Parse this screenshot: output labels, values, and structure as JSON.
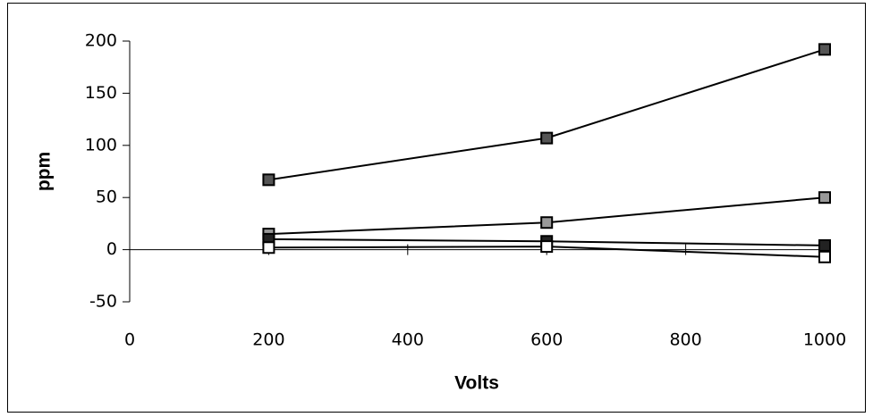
{
  "chart_data": {
    "type": "line",
    "xlabel": "Volts",
    "ylabel": "ppm",
    "x": [
      200,
      600,
      1000
    ],
    "series": [
      {
        "color": "#555555",
        "values": [
          67,
          107,
          192
        ]
      },
      {
        "color": "#999999",
        "values": [
          15,
          26,
          50
        ]
      },
      {
        "color": "#222222",
        "values": [
          10,
          8,
          4
        ]
      },
      {
        "color": "#ffffff",
        "values": [
          2,
          3,
          -7
        ]
      }
    ],
    "xlim": [
      0,
      1000
    ],
    "xticks": [
      0,
      200,
      400,
      600,
      800,
      1000
    ],
    "ylim": [
      -50,
      200
    ],
    "yticks": [
      -50,
      0,
      50,
      100,
      150,
      200
    ],
    "line_color": "#000000",
    "marker": "square"
  }
}
